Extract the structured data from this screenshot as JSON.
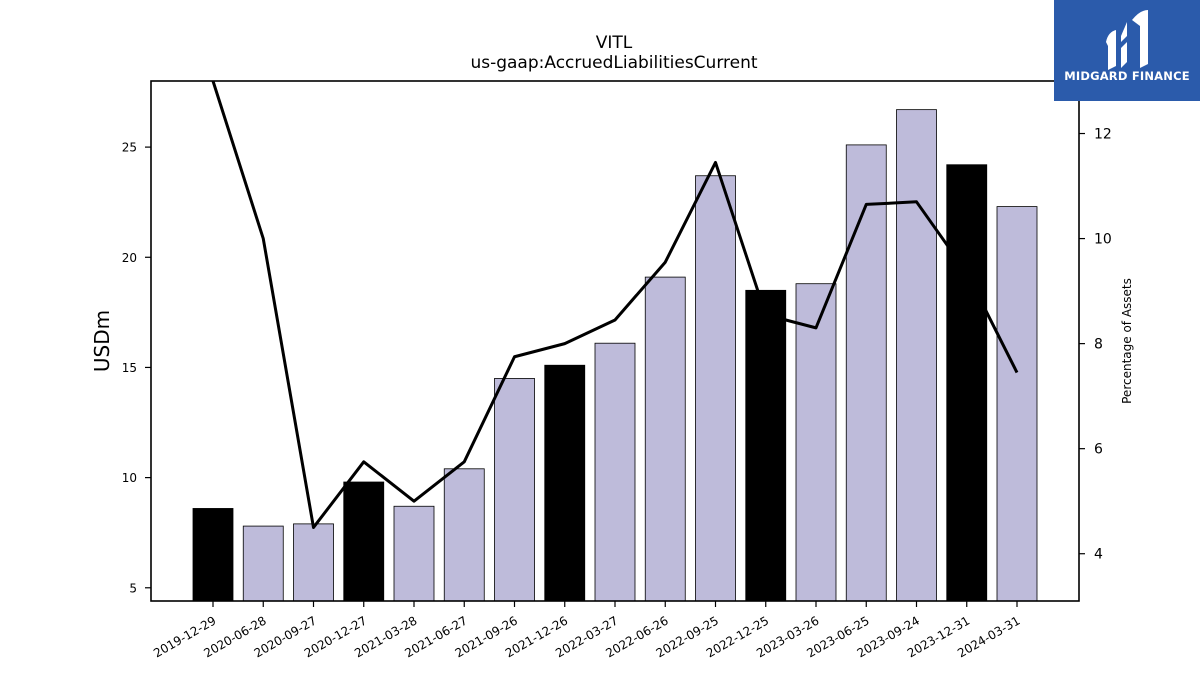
{
  "logo": {
    "text": "MIDGARD FINANCE",
    "bg_color": "#2b5bab"
  },
  "chart_data": {
    "type": "bar",
    "title": "VITL",
    "subtitle": "us-gaap:AccruedLiabilitiesCurrent",
    "ylabel": "USDm",
    "y2label": "Percentage of Assets",
    "categories": [
      "2019-12-29",
      "2020-06-28",
      "2020-09-27",
      "2020-12-27",
      "2021-03-28",
      "2021-06-27",
      "2021-09-26",
      "2021-12-26",
      "2022-03-27",
      "2022-06-26",
      "2022-09-25",
      "2022-12-25",
      "2023-03-26",
      "2023-06-25",
      "2023-09-24",
      "2023-12-31",
      "2024-03-31"
    ],
    "series": [
      {
        "values": [
          8.6,
          7.8,
          7.9,
          9.8,
          8.7,
          10.4,
          14.5,
          15.1,
          16.1,
          19.1,
          23.7,
          18.5,
          18.8,
          25.1,
          26.7,
          24.2,
          22.3
        ]
      }
    ],
    "highlight_colors": [
      "#000000",
      "#bebbda",
      "#bebbda",
      "#000000",
      "#bebbda",
      "#bebbda",
      "#bebbda",
      "#000000",
      "#bebbda",
      "#bebbda",
      "#bebbda",
      "#000000",
      "#bebbda",
      "#bebbda",
      "#bebbda",
      "#000000",
      "#bebbda"
    ],
    "line_series": {
      "axis": "right",
      "values": [
        13.0,
        10.0,
        4.5,
        5.75,
        5.0,
        5.75,
        7.75,
        8.0,
        8.45,
        9.55,
        11.45,
        8.55,
        8.3,
        10.65,
        10.7,
        9.35,
        7.45
      ]
    },
    "ylim": [
      4.4,
      28.0
    ],
    "y2lim": [
      3.1,
      13.0
    ],
    "yticks": [
      5,
      10,
      15,
      20,
      25
    ],
    "y2ticks": [
      4,
      6,
      8,
      10,
      12
    ]
  }
}
